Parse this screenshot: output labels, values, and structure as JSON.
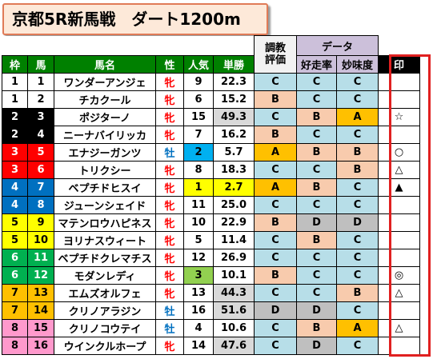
{
  "title": "京都5R新馬戦　ダート1200m",
  "headers": {
    "chokyo_line1": "調教",
    "chokyo_line2": "評価",
    "data_group": "データ",
    "waku": "枠",
    "uma": "馬",
    "bamei": "馬名",
    "sex": "性",
    "ninki": "人気",
    "tansho": "単勝",
    "kotekiritsu": "好走率",
    "myomido": "妙味度",
    "shirushi": "印"
  },
  "colors": {
    "header_green": "#008000",
    "grade_A": "#ffc000",
    "grade_B": "#f8cbad",
    "grade_C": "#b7dee8",
    "grade_D": "#bfbfbf",
    "sex_female": "#ff0000",
    "sex_male": "#0070c0",
    "pop1": "#ffff00",
    "pop2": "#00b0f0",
    "pop3": "#92d050",
    "odds_hi": "#ffff00",
    "odds_lo": "#d9d9d9",
    "mark_border": "#e02020"
  },
  "rows": [
    {
      "waku": "1",
      "uma": "1",
      "name": "ワンダーアンジェ",
      "sex": "牝",
      "ninki": "9",
      "odds": "22.3",
      "eval": "C",
      "rate": "C",
      "value": "C",
      "mark": ""
    },
    {
      "waku": "1",
      "uma": "2",
      "name": "チカクール",
      "sex": "牝",
      "ninki": "6",
      "odds": "15.2",
      "eval": "B",
      "rate": "C",
      "value": "C",
      "mark": ""
    },
    {
      "waku": "2",
      "uma": "3",
      "name": "ポジターノ",
      "sex": "牝",
      "ninki": "15",
      "odds": "49.3",
      "eval": "C",
      "rate": "B",
      "value": "A",
      "mark": "☆"
    },
    {
      "waku": "2",
      "uma": "4",
      "name": "ニーナバイリッカ",
      "sex": "牝",
      "ninki": "7",
      "odds": "16.2",
      "eval": "B",
      "rate": "C",
      "value": "C",
      "mark": ""
    },
    {
      "waku": "3",
      "uma": "5",
      "name": "エナジーガンツ",
      "sex": "牡",
      "ninki": "2",
      "odds": "5.7",
      "eval": "A",
      "rate": "B",
      "value": "B",
      "mark": "○"
    },
    {
      "waku": "3",
      "uma": "6",
      "name": "トリクシー",
      "sex": "牝",
      "ninki": "8",
      "odds": "18.3",
      "eval": "C",
      "rate": "C",
      "value": "B",
      "mark": "△"
    },
    {
      "waku": "4",
      "uma": "7",
      "name": "ベプチドヒスイ",
      "sex": "牝",
      "ninki": "1",
      "odds": "2.7",
      "eval": "A",
      "rate": "B",
      "value": "C",
      "mark": "▲"
    },
    {
      "waku": "4",
      "uma": "8",
      "name": "ジューンシェイド",
      "sex": "牝",
      "ninki": "11",
      "odds": "25.0",
      "eval": "C",
      "rate": "C",
      "value": "C",
      "mark": ""
    },
    {
      "waku": "5",
      "uma": "9",
      "name": "マテンロウハピネス",
      "sex": "牝",
      "ninki": "10",
      "odds": "22.9",
      "eval": "B",
      "rate": "D",
      "value": "D",
      "mark": ""
    },
    {
      "waku": "5",
      "uma": "10",
      "name": "ヨリナスウィート",
      "sex": "牝",
      "ninki": "5",
      "odds": "11.4",
      "eval": "C",
      "rate": "B",
      "value": "C",
      "mark": ""
    },
    {
      "waku": "6",
      "uma": "11",
      "name": "ベプチドクレマチス",
      "sex": "牝",
      "ninki": "12",
      "odds": "26.9",
      "eval": "C",
      "rate": "C",
      "value": "C",
      "mark": ""
    },
    {
      "waku": "6",
      "uma": "12",
      "name": "モダンレディ",
      "sex": "牝",
      "ninki": "3",
      "odds": "10.1",
      "eval": "B",
      "rate": "C",
      "value": "C",
      "mark": "◎"
    },
    {
      "waku": "7",
      "uma": "13",
      "name": "エムズオルフェ",
      "sex": "牝",
      "ninki": "13",
      "odds": "44.3",
      "eval": "C",
      "rate": "C",
      "value": "B",
      "mark": "△"
    },
    {
      "waku": "7",
      "uma": "14",
      "name": "クリノアラジン",
      "sex": "牡",
      "ninki": "16",
      "odds": "51.6",
      "eval": "D",
      "rate": "D",
      "value": "C",
      "mark": ""
    },
    {
      "waku": "8",
      "uma": "15",
      "name": "クリノコウテイ",
      "sex": "牡",
      "ninki": "4",
      "odds": "10.6",
      "eval": "C",
      "rate": "B",
      "value": "A",
      "mark": "△"
    },
    {
      "waku": "8",
      "uma": "16",
      "name": "ウインクルホープ",
      "sex": "牝",
      "ninki": "14",
      "odds": "47.6",
      "eval": "C",
      "rate": "D",
      "value": "C",
      "mark": ""
    }
  ]
}
